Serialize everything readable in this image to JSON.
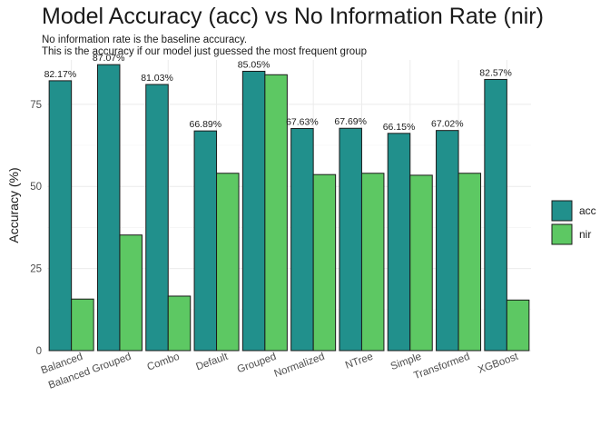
{
  "chart_data": {
    "type": "bar",
    "title": "Model Accuracy (acc) vs No Information Rate (nir)",
    "subtitle": [
      "No information rate is the baseline accuracy.",
      "This is the accuracy if our model just guessed the most frequent group"
    ],
    "xlabel": "",
    "ylabel": "Accuracy (%)",
    "ylim": [
      0,
      88.5
    ],
    "yticks": [
      0,
      25,
      50,
      75
    ],
    "grid": true,
    "legend_position": "right",
    "categories": [
      "Balanced",
      "Balanced Grouped",
      "Combo",
      "Default",
      "Grouped",
      "Normalized",
      "NTree",
      "Simple",
      "Transformed",
      "XGBoost"
    ],
    "series": [
      {
        "name": "acc",
        "color": "#21908C",
        "values": [
          82.17,
          87.07,
          81.03,
          66.89,
          85.05,
          67.63,
          67.69,
          66.15,
          67.02,
          82.57
        ],
        "labels": [
          "82.17%",
          "87.07%",
          "81.03%",
          "66.89%",
          "85.05%",
          "67.63%",
          "67.69%",
          "66.15%",
          "67.02%",
          "82.57%"
        ]
      },
      {
        "name": "nir",
        "color": "#5DC863",
        "values": [
          15.7,
          35.2,
          16.6,
          54.0,
          84.0,
          53.6,
          54.0,
          53.4,
          54.0,
          15.4
        ]
      }
    ]
  }
}
